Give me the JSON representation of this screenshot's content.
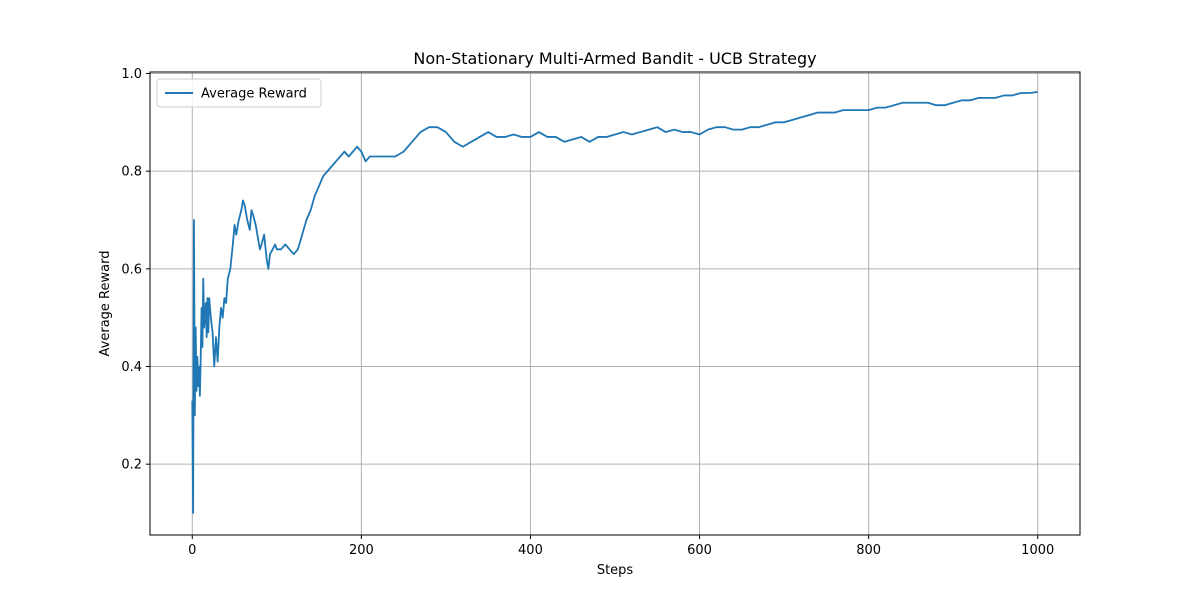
{
  "chart_data": {
    "type": "line",
    "title": "Non-Stationary Multi-Armed Bandit - UCB Strategy",
    "xlabel": "Steps",
    "ylabel": "Average Reward",
    "xlim": [
      -50,
      1050
    ],
    "ylim": [
      0.055,
      1.003
    ],
    "xticks": [
      0,
      200,
      400,
      600,
      800,
      1000
    ],
    "yticks": [
      0.2,
      0.4,
      0.6,
      0.8,
      1.0
    ],
    "xtick_labels": [
      "0",
      "200",
      "400",
      "600",
      "800",
      "1000"
    ],
    "ytick_labels": [
      "0.2",
      "0.4",
      "0.6",
      "0.8",
      "1.0"
    ],
    "grid": true,
    "legend": {
      "position": "top-left",
      "entries": [
        "Average Reward"
      ]
    },
    "series": [
      {
        "name": "Average Reward",
        "color": "#1f77b4",
        "x": [
          0,
          1,
          2,
          3,
          4,
          5,
          6,
          7,
          8,
          9,
          10,
          11,
          12,
          13,
          14,
          15,
          16,
          17,
          18,
          19,
          20,
          22,
          24,
          26,
          28,
          30,
          32,
          34,
          36,
          38,
          40,
          42,
          45,
          48,
          50,
          52,
          55,
          58,
          60,
          62,
          65,
          68,
          70,
          72,
          75,
          78,
          80,
          82,
          85,
          88,
          90,
          92,
          95,
          98,
          100,
          105,
          110,
          115,
          120,
          125,
          130,
          135,
          140,
          145,
          150,
          155,
          160,
          165,
          170,
          175,
          180,
          185,
          190,
          195,
          200,
          205,
          210,
          215,
          220,
          230,
          240,
          250,
          260,
          270,
          280,
          290,
          300,
          310,
          320,
          330,
          340,
          350,
          360,
          370,
          380,
          390,
          400,
          410,
          420,
          430,
          440,
          450,
          460,
          470,
          480,
          490,
          500,
          510,
          520,
          530,
          540,
          550,
          560,
          570,
          580,
          590,
          600,
          610,
          620,
          630,
          640,
          650,
          660,
          670,
          680,
          690,
          700,
          710,
          720,
          730,
          740,
          750,
          760,
          770,
          780,
          790,
          800,
          810,
          820,
          830,
          840,
          850,
          860,
          870,
          880,
          890,
          900,
          910,
          920,
          930,
          940,
          950,
          960,
          970,
          980,
          990,
          1000
        ],
        "y": [
          0.33,
          0.1,
          0.7,
          0.3,
          0.48,
          0.35,
          0.42,
          0.36,
          0.4,
          0.34,
          0.42,
          0.52,
          0.44,
          0.58,
          0.48,
          0.5,
          0.53,
          0.46,
          0.54,
          0.47,
          0.54,
          0.5,
          0.47,
          0.4,
          0.46,
          0.41,
          0.48,
          0.52,
          0.5,
          0.54,
          0.53,
          0.58,
          0.6,
          0.65,
          0.69,
          0.67,
          0.7,
          0.72,
          0.74,
          0.73,
          0.7,
          0.68,
          0.72,
          0.71,
          0.69,
          0.66,
          0.64,
          0.65,
          0.67,
          0.62,
          0.6,
          0.63,
          0.64,
          0.65,
          0.64,
          0.64,
          0.65,
          0.64,
          0.63,
          0.64,
          0.67,
          0.7,
          0.72,
          0.75,
          0.77,
          0.79,
          0.8,
          0.81,
          0.82,
          0.83,
          0.84,
          0.83,
          0.84,
          0.85,
          0.84,
          0.82,
          0.83,
          0.83,
          0.83,
          0.83,
          0.83,
          0.84,
          0.86,
          0.88,
          0.89,
          0.89,
          0.88,
          0.86,
          0.85,
          0.86,
          0.87,
          0.88,
          0.87,
          0.87,
          0.875,
          0.87,
          0.87,
          0.88,
          0.87,
          0.87,
          0.86,
          0.865,
          0.87,
          0.86,
          0.87,
          0.87,
          0.875,
          0.88,
          0.875,
          0.88,
          0.885,
          0.89,
          0.88,
          0.885,
          0.88,
          0.88,
          0.875,
          0.885,
          0.89,
          0.89,
          0.885,
          0.885,
          0.89,
          0.89,
          0.895,
          0.9,
          0.9,
          0.905,
          0.91,
          0.915,
          0.92,
          0.92,
          0.92,
          0.925,
          0.925,
          0.925,
          0.925,
          0.93,
          0.93,
          0.935,
          0.94,
          0.94,
          0.94,
          0.94,
          0.935,
          0.935,
          0.94,
          0.945,
          0.945,
          0.95,
          0.95,
          0.95,
          0.955,
          0.955,
          0.96,
          0.96,
          0.962
        ]
      }
    ]
  }
}
